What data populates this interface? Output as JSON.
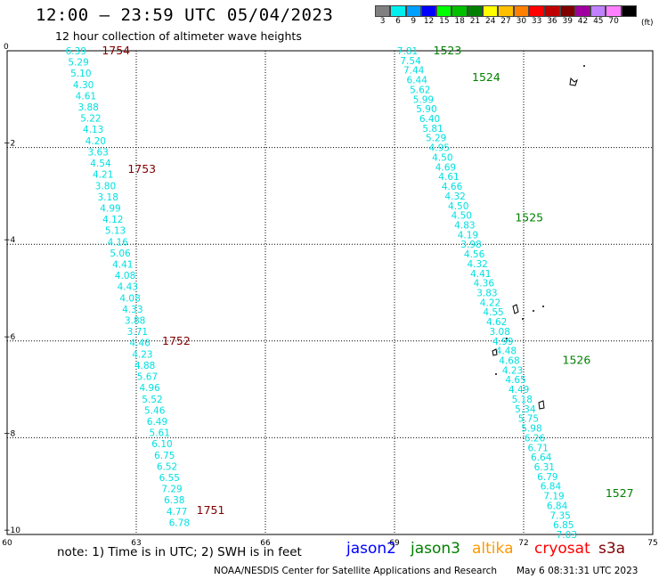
{
  "title": "12:00 – 23:59 UTC 05/04/2023",
  "subtitle": "12 hour collection of altimeter wave heights",
  "colorbar": {
    "unit": "(ft)",
    "levels": [
      {
        "label": "3",
        "color": "#808080"
      },
      {
        "label": "6",
        "color": "#00f0f0"
      },
      {
        "label": "9",
        "color": "#00a0ff"
      },
      {
        "label": "12",
        "color": "#0000ff"
      },
      {
        "label": "15",
        "color": "#00ff00"
      },
      {
        "label": "18",
        "color": "#00c000"
      },
      {
        "label": "21",
        "color": "#008000"
      },
      {
        "label": "24",
        "color": "#ffff00"
      },
      {
        "label": "27",
        "color": "#ffc000"
      },
      {
        "label": "30",
        "color": "#ff8000"
      },
      {
        "label": "33",
        "color": "#ff0000"
      },
      {
        "label": "36",
        "color": "#c00000"
      },
      {
        "label": "39",
        "color": "#800000"
      },
      {
        "label": "42",
        "color": "#a000a0"
      },
      {
        "label": "45",
        "color": "#c080ff"
      },
      {
        "label": "70",
        "color": "#ff80ff"
      },
      {
        "label": "",
        "color": "#000000"
      }
    ]
  },
  "axes": {
    "lon_ticks": [
      "60",
      "63",
      "66",
      "69",
      "72",
      "75"
    ],
    "lat_ticks": [
      "0",
      "−2",
      "−4",
      "−6",
      "−8",
      "−10"
    ],
    "lon_range": [
      60,
      75
    ],
    "lat_range": [
      -10,
      0
    ]
  },
  "tracks": [
    {
      "satellite": "cryosat",
      "color": "#00e0e0",
      "values": [
        "6.39",
        "5.29",
        "5.10",
        "4.30",
        "4.61",
        "3.88",
        "5.22",
        "4.13",
        "4.20",
        "3.63",
        "4.54",
        "4.21",
        "3.80",
        "3.18",
        "4.99",
        "4.12",
        "5.13",
        "4.16",
        "5.06",
        "4.41",
        "4.08",
        "4.43",
        "4.08",
        "4.33",
        "3.88",
        "3.71",
        "4.46",
        "4.23",
        "4.88",
        "5.67",
        "4.96",
        "5.52",
        "5.46",
        "6.49",
        "5.61",
        "6.10",
        "6.75",
        "6.52",
        "6.55",
        "7.29",
        "6.38",
        "4.77",
        "6.78"
      ],
      "start": [
        61.6,
        0.0
      ],
      "end": [
        64.0,
        -9.75
      ],
      "time_labels": [
        {
          "text": "1754",
          "lat": 0.0,
          "lon": 62.2
        },
        {
          "text": "1753",
          "lat": -2.45,
          "lon": 62.8
        },
        {
          "text": "1752",
          "lat": -6.0,
          "lon": 63.6
        },
        {
          "text": "1751",
          "lat": -9.5,
          "lon": 64.4
        }
      ],
      "time_label_color": "#800000"
    },
    {
      "satellite": "jason3",
      "color": "#00e0e0",
      "values": [
        "7.81",
        "7.54",
        "7.44",
        "6.44",
        "5.62",
        "5.99",
        "5.90",
        "6.40",
        "5.81",
        "5.29",
        "4.95",
        "4.50",
        "4.69",
        "4.61",
        "4.66",
        "4.32",
        "4.50",
        "4.50",
        "4.83",
        "4.19",
        "3.98",
        "4.56",
        "4.32",
        "4.41",
        "4.36",
        "3.83",
        "4.22",
        "4.55",
        "4.62",
        "3.08",
        "4.99",
        "4.48",
        "4.68",
        "4.23",
        "4.65",
        "4.49",
        "5.18",
        "5.34",
        "5.75",
        "5.98",
        "6.26",
        "6.71",
        "6.64",
        "6.31",
        "6.79",
        "6.84",
        "7.19",
        "6.84",
        "7.35",
        "6.85",
        "7.03"
      ],
      "start": [
        69.3,
        0.0
      ],
      "end": [
        73.0,
        -10.0
      ],
      "time_labels": [
        {
          "text": "1523",
          "lat": 0.0,
          "lon": 69.9
        },
        {
          "text": "1524",
          "lat": -0.55,
          "lon": 70.8
        },
        {
          "text": "1525",
          "lat": -3.45,
          "lon": 71.8
        },
        {
          "text": "1526",
          "lat": -6.4,
          "lon": 72.9
        },
        {
          "text": "1527",
          "lat": -9.15,
          "lon": 73.9
        }
      ],
      "time_label_color": "#008000"
    }
  ],
  "note": "note:  1) Time is in UTC;  2) SWH is in feet",
  "legend": [
    {
      "name": "jason2",
      "color": "#0000ff"
    },
    {
      "name": "jason3",
      "color": "#008000"
    },
    {
      "name": "altika",
      "color": "#ff9900"
    },
    {
      "name": "cryosat",
      "color": "#ff0000"
    },
    {
      "name": "s3a",
      "color": "#800000"
    }
  ],
  "credit": "NOAA/NESDIS Center for Satellite Applications and Research",
  "generated": "May  6 08:31:31 UTC 2023"
}
